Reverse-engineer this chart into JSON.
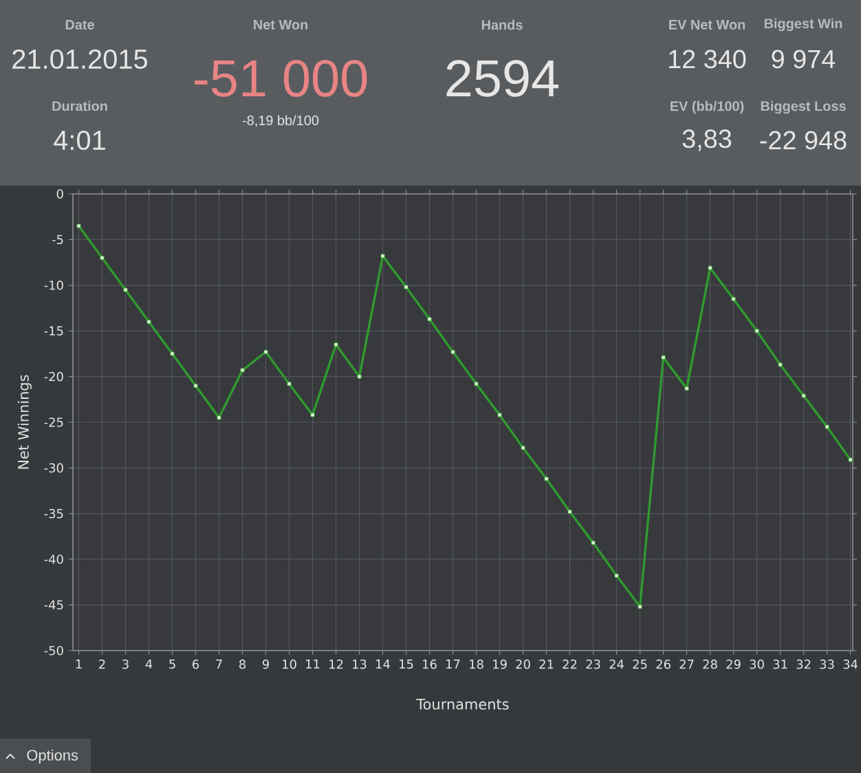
{
  "chart_data": [
    {
      "type": "other",
      "annotations": [
        "Date",
        "21.01.2015",
        "Duration",
        "4:01",
        "Net Won",
        "-51 000",
        "-8,19 bb/100",
        "Hands",
        "2594",
        "EV Net Won",
        "12 340",
        "EV (bb/100)",
        "3,83",
        "Biggest Win",
        "9 974",
        "Biggest Loss",
        "-22 948"
      ]
    },
    {
      "type": "line",
      "xlabel": "Tournaments",
      "ylabel": "Net Winnings",
      "x": [
        1,
        2,
        3,
        4,
        5,
        6,
        7,
        8,
        9,
        10,
        11,
        12,
        13,
        14,
        15,
        16,
        17,
        18,
        19,
        20,
        21,
        22,
        23,
        24,
        25,
        26,
        27,
        28,
        29,
        30,
        31,
        32,
        33,
        34
      ],
      "series": [
        {
          "color": "#2f9a2f",
          "values": [
            -3.5,
            -7.0,
            -10.5,
            -14.0,
            -17.5,
            -21.0,
            -24.5,
            -19.3,
            -17.3,
            -20.8,
            -24.2,
            -16.5,
            -20.0,
            -6.8,
            -10.2,
            -13.7,
            -17.3,
            -20.8,
            -24.2,
            -27.8,
            -31.2,
            -34.8,
            -38.2,
            -41.8,
            -45.2,
            -17.9,
            -21.3,
            -8.1,
            -11.5,
            -15.0,
            -18.7,
            -22.1,
            -25.5,
            -29.1
          ]
        }
      ],
      "xlim": [
        0.75,
        34.1
      ],
      "ylim": [
        -50,
        0
      ],
      "xticks": [
        1,
        2,
        3,
        4,
        5,
        6,
        7,
        8,
        9,
        10,
        11,
        12,
        13,
        14,
        15,
        16,
        17,
        18,
        19,
        20,
        21,
        22,
        23,
        24,
        25,
        26,
        27,
        28,
        29,
        30,
        31,
        32,
        33,
        34
      ],
      "yticks": [
        -50,
        -45,
        -40,
        -35,
        -30,
        -25,
        -20,
        -15,
        -10,
        -5,
        0
      ],
      "grid": true,
      "marker": "square",
      "line_style": "solid",
      "annotations": [
        "Options"
      ]
    }
  ]
}
